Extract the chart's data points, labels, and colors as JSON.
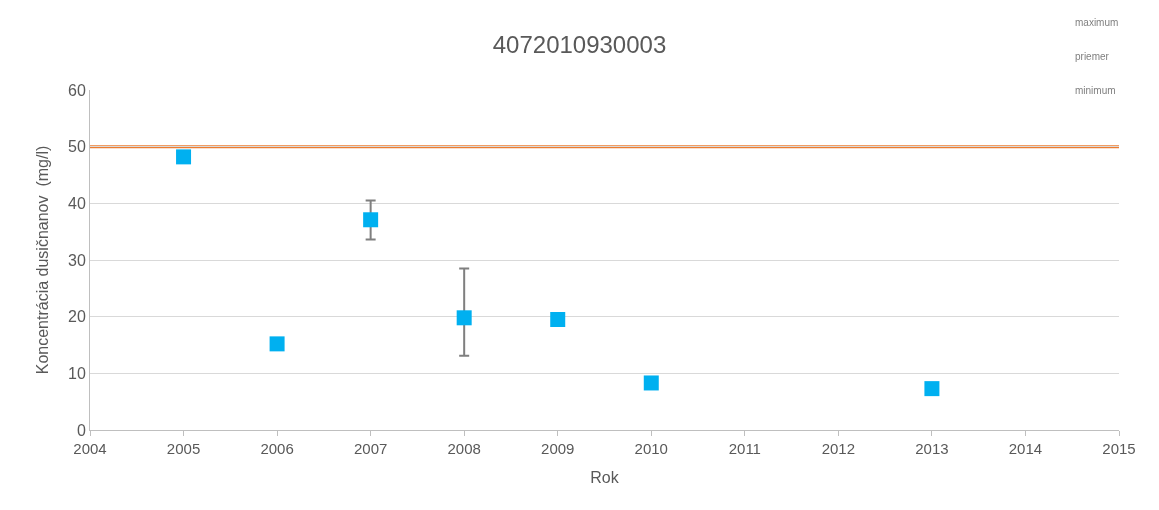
{
  "chart_data": {
    "type": "scatter",
    "title": "4072010930003",
    "xlabel": "Rok",
    "ylabel": "Koncentrácia dusičnanov  (mg/l)",
    "x": [
      2005,
      2006,
      2007,
      2008,
      2009,
      2010,
      2013
    ],
    "values": [
      48.2,
      15.2,
      37.1,
      19.8,
      19.5,
      8.3,
      7.3
    ],
    "errors": [
      null,
      null,
      [
        33.6,
        40.5
      ],
      [
        13.1,
        28.5
      ],
      null,
      null,
      null
    ],
    "color": "#00b0f0",
    "marker": "square",
    "xlim": [
      2004,
      2015
    ],
    "xticks": [
      2004,
      2005,
      2006,
      2007,
      2008,
      2009,
      2010,
      2011,
      2012,
      2013,
      2014,
      2015
    ],
    "ylim": [
      0,
      60
    ],
    "yticks": [
      0,
      10,
      20,
      30,
      40,
      50,
      60
    ],
    "grid": "y",
    "ref_lines": [
      {
        "axis": "y",
        "value": 50,
        "label": null,
        "color": "#ed7d31"
      }
    ],
    "annotations": [
      "maximum",
      "priemer",
      "minimum"
    ]
  }
}
